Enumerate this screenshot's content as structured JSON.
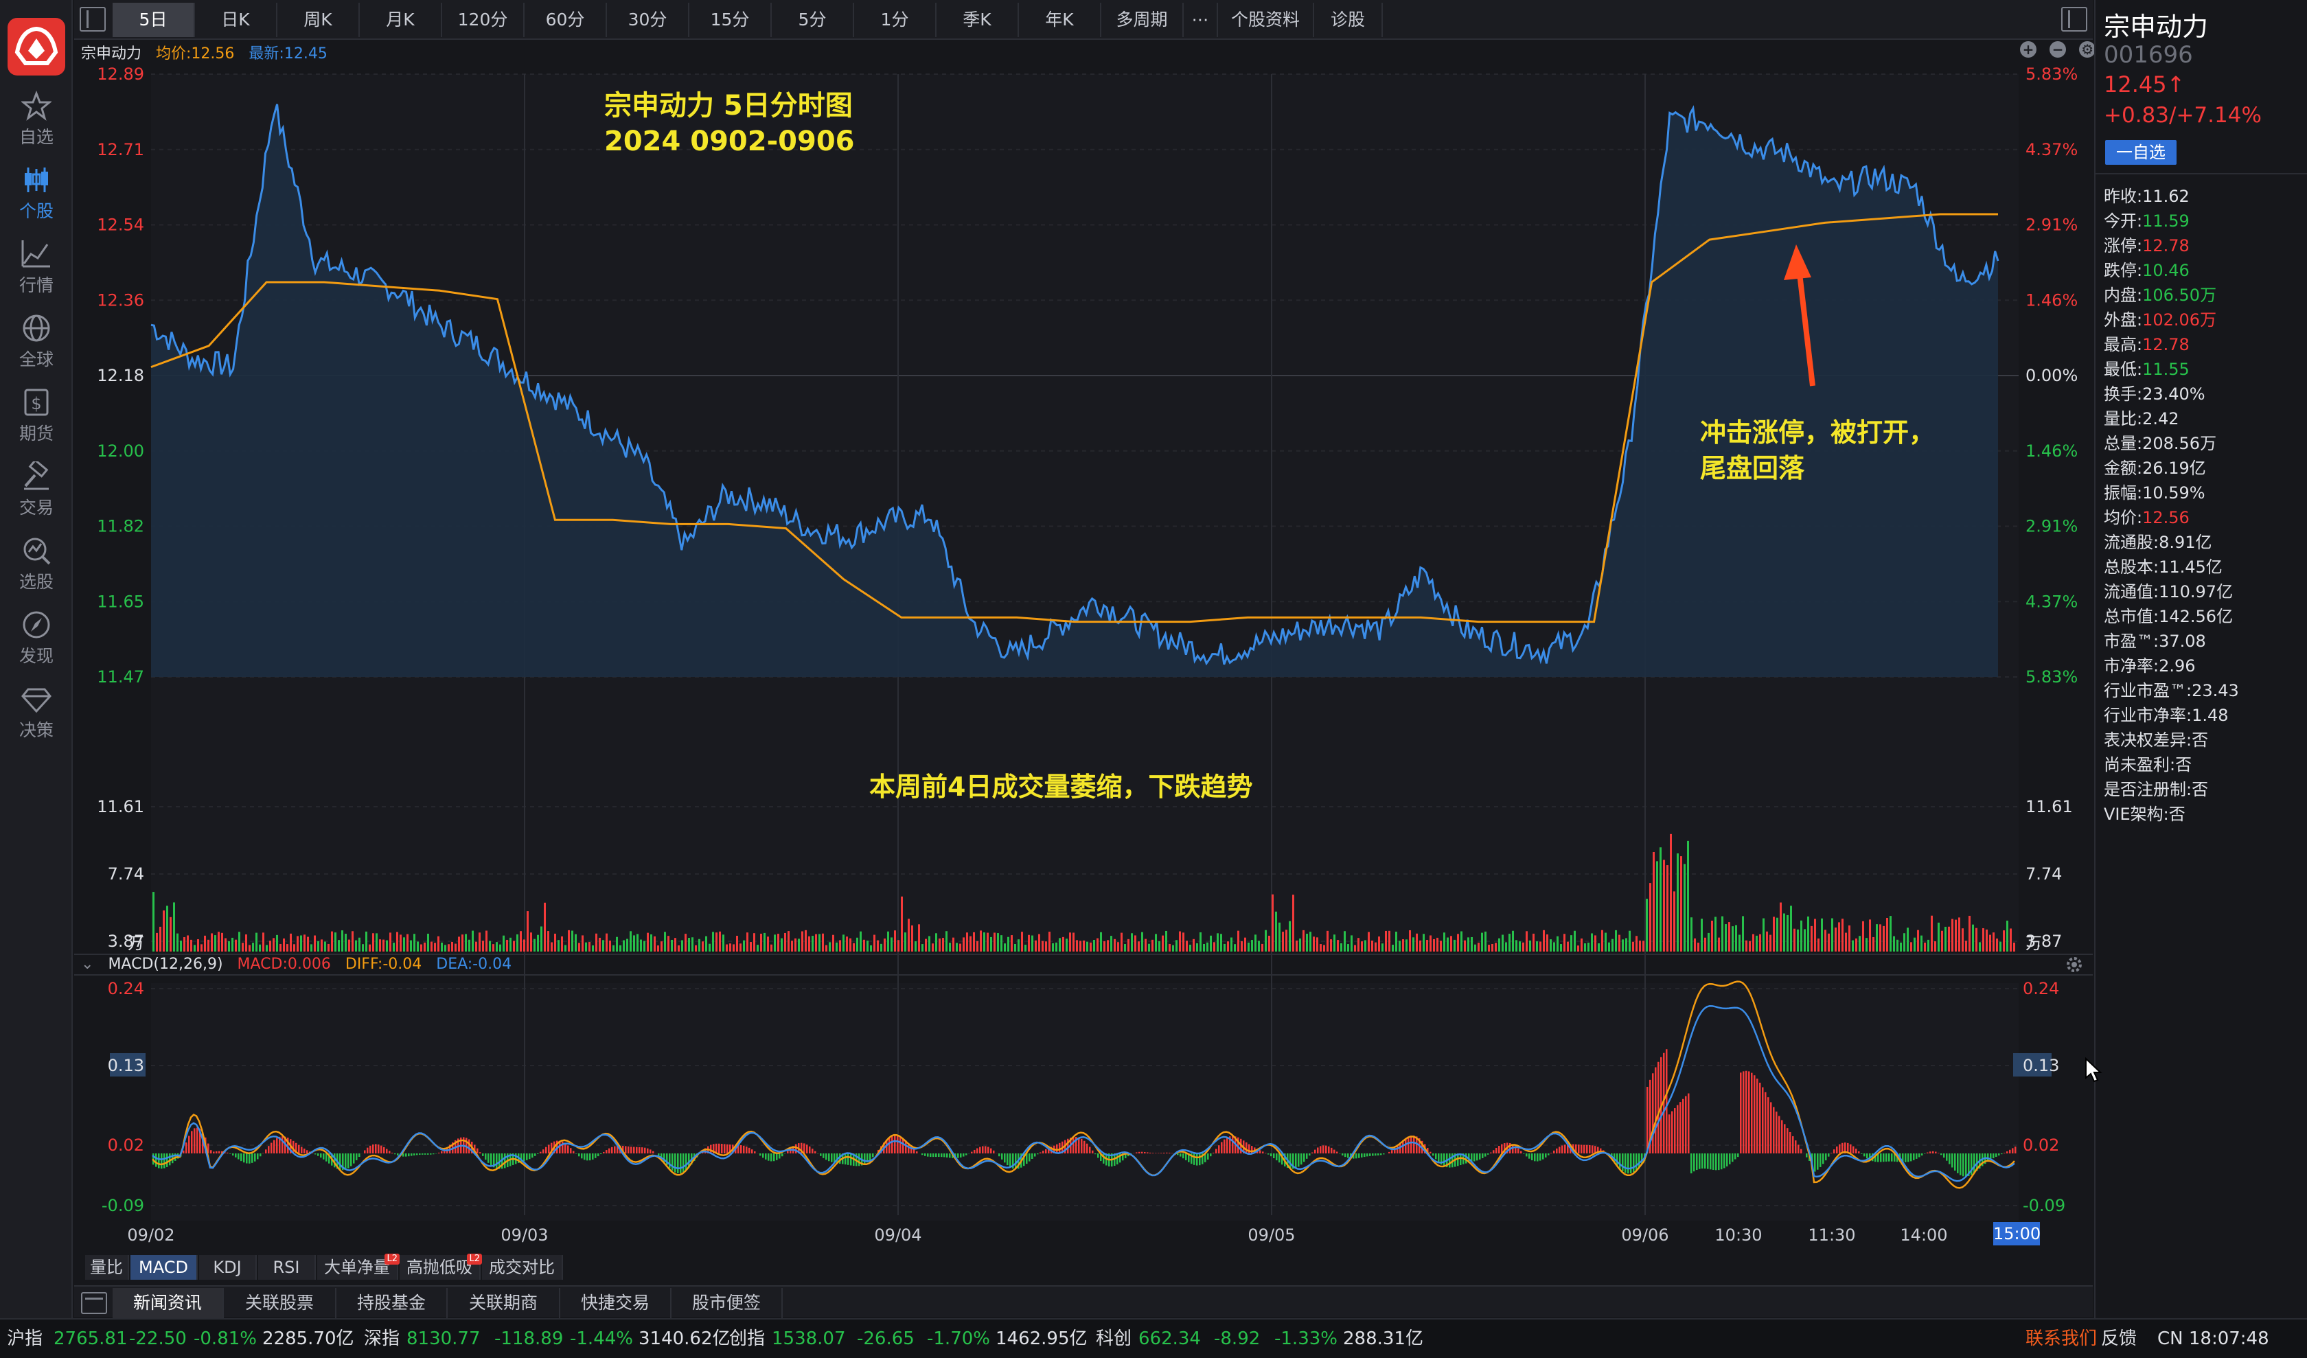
{
  "sidebar": {
    "items": [
      {
        "label": "自选",
        "icon": "star-icon"
      },
      {
        "label": "个股",
        "icon": "candlestick-icon",
        "active": true
      },
      {
        "label": "行情",
        "icon": "line-chart-icon"
      },
      {
        "label": "全球",
        "icon": "globe-icon"
      },
      {
        "label": "期货",
        "icon": "futures-icon"
      },
      {
        "label": "交易",
        "icon": "hammer-icon"
      },
      {
        "label": "选股",
        "icon": "stock-screener-icon"
      },
      {
        "label": "发现",
        "icon": "compass-icon"
      },
      {
        "label": "决策",
        "icon": "diamond-icon"
      }
    ]
  },
  "toolbar": {
    "period_tabs": [
      "5日",
      "日K",
      "周K",
      "月K",
      "120分",
      "60分",
      "30分",
      "15分",
      "5分",
      "1分",
      "季K",
      "年K",
      "多周期",
      "⋯",
      "个股资料",
      "诊股"
    ],
    "active_tab": 0
  },
  "info": {
    "name": "宗申动力",
    "avg": "均价:12.56",
    "last": "最新:12.45"
  },
  "annotations": {
    "title_line1": "宗申动力 5日分时图",
    "title_line2": "2024 0902-0906",
    "limit_note_line1": "冲击涨停，被打开，",
    "limit_note_line2": "尾盘回落",
    "volume_note": "本周前4日成交量萎缩，下跌趋势"
  },
  "macd": {
    "label": "MACD(12,26,9)",
    "macd": "MACD:0.006",
    "diff": "DIFF:-0.04",
    "dea": "DEA:-0.04"
  },
  "indicator_tabs": [
    "量比",
    "MACD",
    "KDJ",
    "RSI",
    "大单净量",
    "高抛低吸",
    "成交对比"
  ],
  "indicator_active": 1,
  "indicator_badges": {
    "4": "L2",
    "5": "L2"
  },
  "info_tabs": [
    "新闻资讯",
    "关联股票",
    "持股基金",
    "关联期商",
    "快捷交易",
    "股市便签"
  ],
  "info_active": 0,
  "x_axis": {
    "labels": [
      "09/02",
      "09/03",
      "09/04",
      "09/05",
      "09/06",
      "10:30",
      "11:30",
      "14:00"
    ],
    "active": "15:00"
  },
  "stock": {
    "name": "宗申动力",
    "code": "001696",
    "price": "12.45↑",
    "change": "+0.83/+7.14%",
    "watch_button": "一自选"
  },
  "quote": [
    {
      "label": "昨收:",
      "value": "11.62",
      "tone": "neutral"
    },
    {
      "label": "今开:",
      "value": "11.59",
      "tone": "down"
    },
    {
      "label": "涨停:",
      "value": "12.78",
      "tone": "up"
    },
    {
      "label": "跌停:",
      "value": "10.46",
      "tone": "down"
    },
    {
      "label": "内盘:",
      "value": "106.50万",
      "tone": "down"
    },
    {
      "label": "外盘:",
      "value": "102.06万",
      "tone": "up"
    },
    {
      "label": "最高:",
      "value": "12.78",
      "tone": "up"
    },
    {
      "label": "最低:",
      "value": "11.55",
      "tone": "down"
    },
    {
      "label": "换手:",
      "value": "23.40%",
      "tone": "neutral"
    },
    {
      "label": "量比:",
      "value": "2.42",
      "tone": "neutral"
    },
    {
      "label": "总量:",
      "value": "208.56万",
      "tone": "neutral"
    },
    {
      "label": "金额:",
      "value": "26.19亿",
      "tone": "neutral"
    },
    {
      "label": "振幅:",
      "value": "10.59%",
      "tone": "neutral"
    },
    {
      "label": "均价:",
      "value": "12.56",
      "tone": "up"
    },
    {
      "label": "流通股:",
      "value": "8.91亿",
      "tone": "neutral"
    },
    {
      "label": "总股本:",
      "value": "11.45亿",
      "tone": "neutral"
    },
    {
      "label": "流通值:",
      "value": "110.97亿",
      "tone": "neutral"
    },
    {
      "label": "总市值:",
      "value": "142.56亿",
      "tone": "neutral"
    },
    {
      "label": "市盈™:",
      "value": "37.08",
      "tone": "neutral"
    },
    {
      "label": "市净率:",
      "value": "2.96",
      "tone": "neutral"
    },
    {
      "label": "行业市盈™:",
      "value": "23.43",
      "tone": "neutral"
    },
    {
      "label": "行业市净率:",
      "value": "1.48",
      "tone": "neutral"
    },
    {
      "label": "表决权差异:",
      "value": "否",
      "tone": "neutral"
    },
    {
      "label": "尚未盈利:",
      "value": "否",
      "tone": "neutral"
    },
    {
      "label": "是否注册制:",
      "value": "否",
      "tone": "neutral"
    },
    {
      "label": "VIE架构:",
      "value": "否",
      "tone": "neutral"
    }
  ],
  "status_bar": {
    "items": [
      {
        "text": "沪指",
        "tone": "neutral"
      },
      {
        "text": "2765.81",
        "tone": "down"
      },
      {
        "text": "-22.50",
        "tone": "down"
      },
      {
        "text": "-0.81%",
        "tone": "down"
      },
      {
        "text": "2285.70亿",
        "tone": "neutral"
      },
      {
        "text": "深指",
        "tone": "neutral"
      },
      {
        "text": "8130.77",
        "tone": "down"
      },
      {
        "text": "-118.89",
        "tone": "down"
      },
      {
        "text": "-1.44%",
        "tone": "down"
      },
      {
        "text": "3140.62亿",
        "tone": "neutral"
      },
      {
        "text": "创指",
        "tone": "neutral"
      },
      {
        "text": "1538.07",
        "tone": "down"
      },
      {
        "text": "-26.65",
        "tone": "down"
      },
      {
        "text": "-1.70%",
        "tone": "down"
      },
      {
        "text": "1462.95亿",
        "tone": "neutral"
      },
      {
        "text": "科创",
        "tone": "neutral"
      },
      {
        "text": "662.34",
        "tone": "down"
      },
      {
        "text": "-8.92",
        "tone": "down"
      },
      {
        "text": "-1.33%",
        "tone": "down"
      },
      {
        "text": "288.31亿",
        "tone": "neutral"
      }
    ],
    "contact": "联系我们",
    "feedback": "反馈",
    "clock": "CN 18:07:48"
  },
  "chart_data": {
    "type": "line",
    "title": "",
    "price_axis": {
      "ticks": [
        "12.89",
        "12.71",
        "12.54",
        "12.36",
        "12.18",
        "12.00",
        "11.82",
        "11.65",
        "11.47"
      ],
      "ylim": [
        11.47,
        12.89
      ]
    },
    "pct_axis": {
      "ticks": [
        "5.83%",
        "4.37%",
        "2.91%",
        "1.46%",
        "0.00%",
        "1.46%",
        "2.91%",
        "4.37%",
        "5.83%"
      ]
    },
    "volume_axis": {
      "ticks": [
        "11.61",
        "7.74",
        "3.87",
        "万"
      ],
      "unit": "万",
      "ylim": [
        0,
        11.61
      ]
    },
    "macd_axis": {
      "ticks": [
        "0.24",
        "0.13",
        "0.02",
        "-0.09"
      ],
      "ylim": [
        -0.09,
        0.24
      ]
    },
    "days": [
      "09/02",
      "09/03",
      "09/04",
      "09/05",
      "09/06"
    ],
    "series": [
      {
        "name": "最新",
        "color": "#3b8de8",
        "values": [
          12.3,
          12.22,
          12.2,
          12.82,
          12.45,
          12.42,
          12.38,
          12.3,
          12.25,
          12.18,
          12.12,
          12.05,
          11.98,
          11.78,
          11.9,
          11.88,
          11.82,
          11.8,
          11.84,
          11.85,
          11.6,
          11.52,
          11.58,
          11.65,
          11.6,
          11.55,
          11.52,
          11.55,
          11.58,
          11.6,
          11.58,
          11.72,
          11.58,
          11.55,
          11.53,
          11.58,
          12.0,
          12.78,
          12.78,
          12.72,
          12.7,
          12.62,
          12.65,
          12.62,
          12.4,
          12.45
        ]
      },
      {
        "name": "均价",
        "color": "#f39c12",
        "values": [
          12.2,
          12.25,
          12.4,
          12.4,
          12.39,
          12.38,
          12.36,
          11.84,
          11.84,
          11.83,
          11.83,
          11.82,
          11.7,
          11.61,
          11.61,
          11.61,
          11.6,
          11.6,
          11.6,
          11.61,
          11.61,
          11.61,
          11.61,
          11.6,
          11.6,
          11.6,
          12.4,
          12.5,
          12.52,
          12.54,
          12.55,
          12.56,
          12.56
        ]
      }
    ],
    "volume": {
      "color_up": "#f43a3a",
      "color_down": "#27c04b",
      "max_day5": 11.3
    },
    "macd_series": [
      {
        "name": "DIFF",
        "color": "#f39c12"
      },
      {
        "name": "DEA",
        "color": "#3b8de8"
      }
    ]
  }
}
